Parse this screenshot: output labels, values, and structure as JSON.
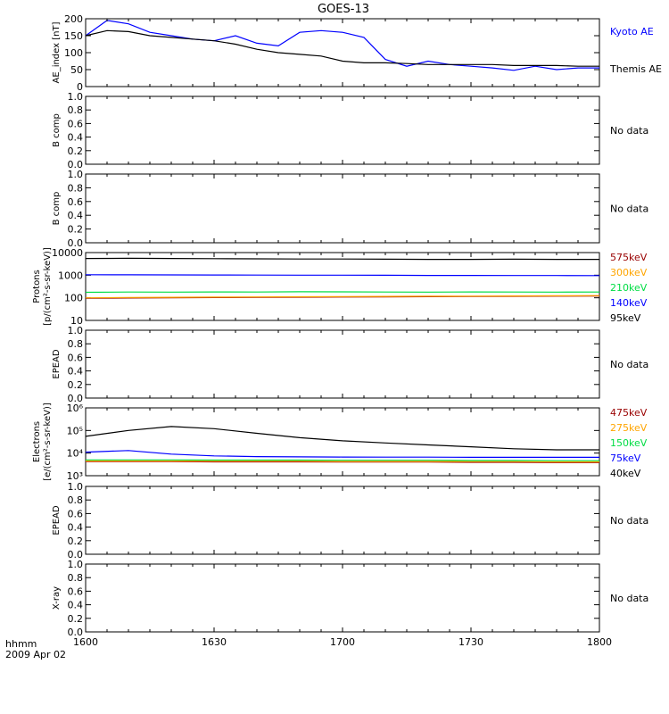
{
  "title": "GOES-13",
  "bottom_label_1": "hhmm",
  "bottom_label_2": "2009 Apr 02",
  "x_tick_labels": [
    "1600",
    "1630",
    "1700",
    "1730",
    "1800"
  ],
  "colors": {
    "black": "#000000",
    "blue": "#0000ff",
    "green": "#00dd44",
    "orange": "#ffa500",
    "darkred": "#990000"
  },
  "chart_data": [
    {
      "type": "line",
      "ylabel": "AE_index [nT]",
      "ylim": [
        0,
        200
      ],
      "yticks": [
        "0",
        "50",
        "100",
        "150",
        "200"
      ],
      "x": [
        0,
        5,
        10,
        15,
        20,
        25,
        30,
        35,
        40,
        45,
        50,
        55,
        60,
        65,
        70,
        75,
        80,
        85,
        90,
        95,
        100,
        105,
        110,
        115,
        120
      ],
      "series": [
        {
          "name": "Kyoto AE",
          "color": "#0000ff",
          "values": [
            150,
            195,
            185,
            160,
            150,
            140,
            135,
            150,
            128,
            120,
            160,
            165,
            160,
            145,
            80,
            60,
            75,
            65,
            60,
            55,
            48,
            60,
            50,
            55,
            55
          ]
        },
        {
          "name": "Themis AE",
          "color": "#000000",
          "values": [
            150,
            165,
            162,
            150,
            145,
            140,
            135,
            125,
            110,
            100,
            95,
            90,
            75,
            70,
            70,
            68,
            65,
            65,
            65,
            65,
            62,
            62,
            62,
            60,
            60
          ]
        }
      ],
      "status": ""
    },
    {
      "type": "line",
      "ylabel": "B comp",
      "ylim": [
        0,
        1
      ],
      "yticks": [
        "0.0",
        "0.2",
        "0.4",
        "0.6",
        "0.8",
        "1.0"
      ],
      "series": [],
      "status": "No data"
    },
    {
      "type": "line",
      "ylabel": "B comp",
      "ylim": [
        0,
        1
      ],
      "yticks": [
        "0.0",
        "0.2",
        "0.4",
        "0.6",
        "0.8",
        "1.0"
      ],
      "series": [],
      "status": "No data"
    },
    {
      "type": "line",
      "log": true,
      "ylabel_1": "Protons",
      "ylabel_2": "[p/(cm²-s-sr-keV)]",
      "ylim": [
        10,
        10000
      ],
      "yticks": [
        "10",
        "100",
        "1000",
        "10000"
      ],
      "x": [
        0,
        10,
        20,
        30,
        40,
        50,
        60,
        70,
        80,
        90,
        100,
        110,
        120
      ],
      "series": [
        {
          "name": "575keV",
          "color": "#990000",
          "values": [
            95,
            98,
            100,
            102,
            104,
            106,
            108,
            110,
            112,
            114,
            116,
            118,
            120
          ]
        },
        {
          "name": "300keV",
          "color": "#ffa500",
          "values": [
            100,
            103,
            105,
            107,
            109,
            111,
            113,
            115,
            117,
            119,
            121,
            123,
            125
          ]
        },
        {
          "name": "210keV",
          "color": "#00dd44",
          "values": [
            175,
            180,
            178,
            182,
            180,
            185,
            183,
            180,
            178,
            182,
            180,
            178,
            180
          ]
        },
        {
          "name": "140keV",
          "color": "#0000ff",
          "values": [
            1050,
            1040,
            1030,
            1020,
            1010,
            1000,
            1000,
            990,
            980,
            980,
            970,
            970,
            960
          ]
        },
        {
          "name": "95keV",
          "color": "#000000",
          "values": [
            5500,
            5600,
            5500,
            5400,
            5300,
            5200,
            5200,
            5100,
            5000,
            5000,
            5100,
            5000,
            5000
          ]
        }
      ],
      "status": ""
    },
    {
      "type": "line",
      "ylabel": "EPEAD",
      "ylim": [
        0,
        1
      ],
      "yticks": [
        "0.0",
        "0.2",
        "0.4",
        "0.6",
        "0.8",
        "1.0"
      ],
      "series": [],
      "status": "No data"
    },
    {
      "type": "line",
      "log": true,
      "ylabel_1": "Electrons",
      "ylabel_2": "[e/(cm²-s-sr-keV)]",
      "ylim": [
        1000,
        1000000
      ],
      "yticks": [
        "10³",
        "10⁴",
        "10⁵",
        "10⁶"
      ],
      "x": [
        0,
        10,
        20,
        30,
        40,
        50,
        60,
        70,
        80,
        90,
        100,
        110,
        120
      ],
      "series": [
        {
          "name": "475keV",
          "color": "#990000",
          "values": [
            4200,
            4200,
            4200,
            4100,
            4100,
            4100,
            4000,
            4000,
            4000,
            3900,
            3900,
            3800,
            3800
          ]
        },
        {
          "name": "275keV",
          "color": "#ffa500",
          "values": [
            4500,
            4500,
            4500,
            4400,
            4400,
            4400,
            4300,
            4300,
            4300,
            4200,
            4200,
            4100,
            4100
          ]
        },
        {
          "name": "150keV",
          "color": "#00dd44",
          "values": [
            5000,
            5000,
            5000,
            4900,
            4900,
            4900,
            4800,
            4800,
            4800,
            4700,
            4700,
            4600,
            4600
          ]
        },
        {
          "name": "75keV",
          "color": "#0000ff",
          "values": [
            11000,
            13000,
            9000,
            7500,
            7000,
            6800,
            6700,
            6600,
            6600,
            6500,
            6500,
            6500,
            6500
          ]
        },
        {
          "name": "40keV",
          "color": "#000000",
          "values": [
            55000,
            100000,
            150000,
            120000,
            75000,
            48000,
            35000,
            28000,
            23000,
            19000,
            15500,
            14000,
            14000
          ]
        }
      ],
      "status": ""
    },
    {
      "type": "line",
      "ylabel": "EPEAD",
      "ylim": [
        0,
        1
      ],
      "yticks": [
        "0.0",
        "0.2",
        "0.4",
        "0.6",
        "0.8",
        "1.0"
      ],
      "series": [],
      "status": "No data"
    },
    {
      "type": "line",
      "ylabel": "X-ray",
      "ylim": [
        0,
        1
      ],
      "yticks": [
        "0.0",
        "0.2",
        "0.4",
        "0.6",
        "0.8",
        "1.0"
      ],
      "series": [],
      "status": "No data"
    }
  ]
}
